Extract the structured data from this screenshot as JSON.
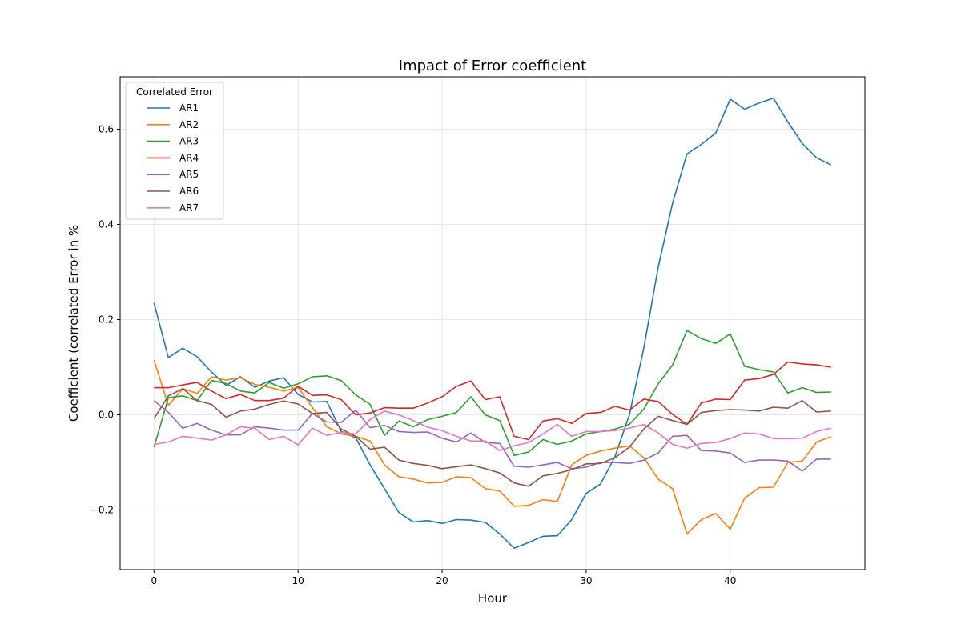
{
  "chart_data": {
    "type": "line",
    "title": "Impact of Error coefficient",
    "xlabel": "Hour",
    "ylabel": "Coefficient (correlated Error in %",
    "xlim": [
      -2.35,
      49.35
    ],
    "ylim": [
      -0.325,
      0.71
    ],
    "xticks": [
      0,
      10,
      20,
      30,
      40
    ],
    "yticks": [
      -0.2,
      0.0,
      0.2,
      0.4,
      0.6
    ],
    "ytick_labels": [
      "−0.2",
      "0.0",
      "0.2",
      "0.4",
      "0.6"
    ],
    "grid": true,
    "legend": {
      "title": "Correlated Error",
      "placement": "top-left"
    },
    "x": [
      0,
      1,
      2,
      3,
      4,
      5,
      6,
      7,
      8,
      9,
      10,
      11,
      12,
      13,
      14,
      15,
      16,
      17,
      18,
      19,
      20,
      21,
      22,
      23,
      24,
      25,
      26,
      27,
      28,
      29,
      30,
      31,
      32,
      33,
      34,
      35,
      36,
      37,
      38,
      39,
      40,
      41,
      42,
      43,
      44,
      45,
      46,
      47
    ],
    "series": [
      {
        "name": "AR1",
        "color": "#1f77b4",
        "values": [
          0.235,
          0.12,
          0.14,
          0.122,
          0.09,
          0.062,
          0.08,
          0.058,
          0.071,
          0.078,
          0.043,
          0.027,
          0.028,
          -0.035,
          -0.048,
          -0.105,
          -0.155,
          -0.205,
          -0.225,
          -0.222,
          -0.228,
          -0.22,
          -0.221,
          -0.226,
          -0.25,
          -0.28,
          -0.268,
          -0.255,
          -0.254,
          -0.22,
          -0.165,
          -0.145,
          -0.088,
          -0.0,
          0.14,
          0.31,
          0.445,
          0.548,
          0.568,
          0.592,
          0.663,
          0.642,
          0.655,
          0.665,
          0.615,
          0.57,
          0.54,
          0.525
        ]
      },
      {
        "name": "AR2",
        "color": "#ff7f0e",
        "values": [
          0.115,
          0.02,
          0.055,
          0.045,
          0.08,
          0.073,
          0.078,
          0.064,
          0.058,
          0.05,
          0.058,
          0.015,
          -0.025,
          -0.04,
          -0.045,
          -0.055,
          -0.105,
          -0.13,
          -0.135,
          -0.143,
          -0.142,
          -0.13,
          -0.132,
          -0.155,
          -0.16,
          -0.192,
          -0.19,
          -0.178,
          -0.182,
          -0.105,
          -0.085,
          -0.076,
          -0.07,
          -0.065,
          -0.09,
          -0.135,
          -0.155,
          -0.25,
          -0.22,
          -0.207,
          -0.24,
          -0.175,
          -0.153,
          -0.152,
          -0.1,
          -0.097,
          -0.057,
          -0.046
        ]
      },
      {
        "name": "AR3",
        "color": "#2ca02c",
        "values": [
          -0.068,
          0.036,
          0.04,
          0.03,
          0.072,
          0.066,
          0.05,
          0.046,
          0.068,
          0.056,
          0.065,
          0.08,
          0.082,
          0.072,
          0.042,
          0.022,
          -0.043,
          -0.013,
          -0.025,
          -0.01,
          -0.003,
          0.005,
          0.038,
          0.0,
          -0.012,
          -0.085,
          -0.078,
          -0.052,
          -0.062,
          -0.055,
          -0.04,
          -0.035,
          -0.03,
          -0.02,
          0.012,
          0.065,
          0.105,
          0.177,
          0.16,
          0.15,
          0.17,
          0.102,
          0.095,
          0.09,
          0.046,
          0.057,
          0.047,
          0.048
        ]
      },
      {
        "name": "AR4",
        "color": "#d62728",
        "values": [
          0.057,
          0.057,
          0.063,
          0.068,
          0.05,
          0.034,
          0.043,
          0.03,
          0.03,
          0.035,
          0.06,
          0.041,
          0.042,
          0.032,
          0.0,
          0.004,
          0.015,
          0.014,
          0.014,
          0.025,
          0.038,
          0.06,
          0.071,
          0.032,
          0.038,
          -0.045,
          -0.052,
          -0.013,
          -0.008,
          -0.018,
          0.003,
          0.005,
          0.018,
          0.01,
          0.033,
          0.028,
          0.001,
          -0.02,
          0.025,
          0.033,
          0.032,
          0.073,
          0.076,
          0.085,
          0.111,
          0.107,
          0.105,
          0.1
        ]
      },
      {
        "name": "AR5",
        "color": "#9467bd",
        "values": [
          0.03,
          0.005,
          -0.028,
          -0.018,
          -0.032,
          -0.042,
          -0.042,
          -0.025,
          -0.028,
          -0.032,
          -0.032,
          0.003,
          -0.015,
          -0.016,
          0.01,
          -0.027,
          -0.022,
          -0.035,
          -0.037,
          -0.036,
          -0.049,
          -0.057,
          -0.038,
          -0.058,
          -0.06,
          -0.108,
          -0.11,
          -0.105,
          -0.1,
          -0.113,
          -0.11,
          -0.1,
          -0.1,
          -0.102,
          -0.095,
          -0.08,
          -0.045,
          -0.043,
          -0.075,
          -0.076,
          -0.08,
          -0.1,
          -0.095,
          -0.095,
          -0.097,
          -0.118,
          -0.093,
          -0.093
        ]
      },
      {
        "name": "AR6",
        "color": "#8c564b",
        "values": [
          -0.008,
          0.04,
          0.055,
          0.03,
          0.022,
          -0.005,
          0.008,
          0.012,
          0.022,
          0.029,
          0.023,
          0.003,
          0.005,
          -0.03,
          -0.045,
          -0.072,
          -0.068,
          -0.095,
          -0.102,
          -0.106,
          -0.113,
          -0.109,
          -0.105,
          -0.113,
          -0.122,
          -0.143,
          -0.15,
          -0.128,
          -0.123,
          -0.115,
          -0.103,
          -0.102,
          -0.09,
          -0.068,
          -0.03,
          -0.003,
          -0.012,
          -0.02,
          0.005,
          0.009,
          0.011,
          0.01,
          0.008,
          0.016,
          0.014,
          0.03,
          0.006,
          0.008
        ]
      },
      {
        "name": "AR7",
        "color": "#e377c2",
        "values": [
          -0.062,
          -0.057,
          -0.045,
          -0.049,
          -0.053,
          -0.042,
          -0.025,
          -0.028,
          -0.052,
          -0.045,
          -0.063,
          -0.028,
          -0.043,
          -0.037,
          -0.04,
          -0.01,
          0.008,
          0.0,
          -0.012,
          -0.026,
          -0.033,
          -0.045,
          -0.055,
          -0.055,
          -0.075,
          -0.065,
          -0.058,
          -0.04,
          -0.02,
          -0.045,
          -0.035,
          -0.035,
          -0.033,
          -0.028,
          -0.02,
          -0.038,
          -0.062,
          -0.07,
          -0.06,
          -0.058,
          -0.05,
          -0.038,
          -0.04,
          -0.05,
          -0.05,
          -0.049,
          -0.035,
          -0.028
        ]
      }
    ]
  }
}
